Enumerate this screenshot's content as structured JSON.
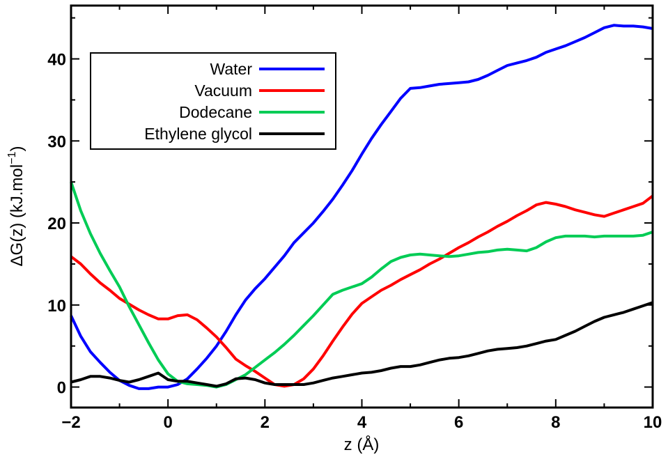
{
  "chart_data": {
    "type": "line",
    "xlabel": "z (Å)",
    "ylabel_main": "ΔG(z) (kJ.mol",
    "ylabel_sup": "−1",
    "ylabel_close": ")",
    "xlim": [
      -2,
      10
    ],
    "ylim": [
      -2.5,
      46.5
    ],
    "xticks": [
      -2,
      0,
      2,
      4,
      6,
      8,
      10
    ],
    "xtick_labels": [
      "−2",
      "0",
      "2",
      "4",
      "6",
      "8",
      "10"
    ],
    "yticks": [
      0,
      10,
      20,
      30,
      40
    ],
    "ytick_labels": [
      "0",
      "10",
      "20",
      "30",
      "40"
    ],
    "grid": false,
    "legend_position": "top-left",
    "series": [
      {
        "name": "Water",
        "color": "#0000ff",
        "x": [
          -2,
          -1.8,
          -1.6,
          -1.4,
          -1.2,
          -1,
          -0.8,
          -0.6,
          -0.4,
          -0.2,
          0,
          0.2,
          0.4,
          0.6,
          0.8,
          1,
          1.2,
          1.4,
          1.6,
          1.8,
          2,
          2.2,
          2.4,
          2.6,
          2.8,
          3,
          3.2,
          3.4,
          3.6,
          3.8,
          4,
          4.2,
          4.4,
          4.6,
          4.8,
          5,
          5.2,
          5.4,
          5.6,
          5.8,
          6,
          6.2,
          6.4,
          6.6,
          6.8,
          7,
          7.2,
          7.4,
          7.6,
          7.8,
          8,
          8.2,
          8.4,
          8.6,
          8.8,
          9,
          9.2,
          9.4,
          9.6,
          9.8,
          10
        ],
        "values": [
          8.7,
          6.2,
          4.3,
          3.0,
          1.8,
          0.8,
          0.2,
          -0.2,
          -0.2,
          0.0,
          0.0,
          0.3,
          1.0,
          2.2,
          3.5,
          5.0,
          6.8,
          8.8,
          10.6,
          12.0,
          13.2,
          14.6,
          16.0,
          17.6,
          18.8,
          20.0,
          21.4,
          22.9,
          24.6,
          26.4,
          28.4,
          30.3,
          32.0,
          33.6,
          35.2,
          36.4,
          36.5,
          36.7,
          36.9,
          37.0,
          37.1,
          37.2,
          37.5,
          38.0,
          38.6,
          39.2,
          39.5,
          39.8,
          40.2,
          40.8,
          41.2,
          41.6,
          42.1,
          42.6,
          43.2,
          43.8,
          44.1,
          44.0,
          44.0,
          43.9,
          43.7
        ]
      },
      {
        "name": "Vacuum",
        "color": "#ff0000",
        "x": [
          -2,
          -1.8,
          -1.6,
          -1.4,
          -1.2,
          -1,
          -0.8,
          -0.6,
          -0.4,
          -0.2,
          0,
          0.2,
          0.4,
          0.6,
          0.8,
          1,
          1.2,
          1.4,
          1.6,
          1.8,
          2,
          2.2,
          2.4,
          2.6,
          2.8,
          3,
          3.2,
          3.4,
          3.6,
          3.8,
          4,
          4.2,
          4.4,
          4.6,
          4.8,
          5,
          5.2,
          5.4,
          5.6,
          5.8,
          6,
          6.2,
          6.4,
          6.6,
          6.8,
          7,
          7.2,
          7.4,
          7.6,
          7.8,
          8,
          8.2,
          8.4,
          8.6,
          8.8,
          9,
          9.2,
          9.4,
          9.6,
          9.8,
          10
        ],
        "values": [
          15.9,
          15.0,
          13.8,
          12.7,
          11.8,
          10.8,
          10.1,
          9.4,
          8.8,
          8.3,
          8.3,
          8.7,
          8.8,
          8.2,
          7.2,
          6.1,
          4.8,
          3.4,
          2.6,
          1.9,
          1.1,
          0.3,
          0.1,
          0.3,
          1.0,
          2.2,
          3.8,
          5.6,
          7.3,
          8.9,
          10.2,
          11.0,
          11.8,
          12.4,
          13.1,
          13.7,
          14.3,
          15.0,
          15.6,
          16.3,
          17.0,
          17.6,
          18.3,
          18.9,
          19.6,
          20.2,
          20.9,
          21.5,
          22.2,
          22.5,
          22.3,
          22.0,
          21.6,
          21.3,
          21.0,
          20.8,
          21.2,
          21.6,
          22.0,
          22.4,
          23.3
        ]
      },
      {
        "name": "Dodecane",
        "color": "#00cc55",
        "x": [
          -2,
          -1.8,
          -1.6,
          -1.4,
          -1.2,
          -1,
          -0.8,
          -0.6,
          -0.4,
          -0.2,
          0,
          0.2,
          0.4,
          0.6,
          0.8,
          1,
          1.2,
          1.4,
          1.6,
          1.8,
          2,
          2.2,
          2.4,
          2.6,
          2.8,
          3,
          3.2,
          3.4,
          3.6,
          3.8,
          4,
          4.2,
          4.4,
          4.6,
          4.8,
          5,
          5.2,
          5.4,
          5.6,
          5.8,
          6,
          6.2,
          6.4,
          6.6,
          6.8,
          7,
          7.2,
          7.4,
          7.6,
          7.8,
          8,
          8.2,
          8.4,
          8.6,
          8.8,
          9,
          9.2,
          9.4,
          9.6,
          9.8,
          10
        ],
        "values": [
          25.0,
          21.5,
          18.7,
          16.3,
          14.2,
          12.2,
          9.8,
          7.6,
          5.4,
          3.3,
          1.6,
          0.7,
          0.4,
          0.3,
          0.2,
          0.0,
          0.3,
          0.9,
          1.5,
          2.4,
          3.3,
          4.2,
          5.2,
          6.3,
          7.5,
          8.7,
          10.0,
          11.3,
          11.8,
          12.2,
          12.6,
          13.4,
          14.4,
          15.3,
          15.8,
          16.1,
          16.2,
          16.1,
          16.0,
          15.9,
          16.0,
          16.2,
          16.4,
          16.5,
          16.7,
          16.8,
          16.7,
          16.6,
          17.0,
          17.7,
          18.2,
          18.4,
          18.4,
          18.4,
          18.3,
          18.4,
          18.4,
          18.4,
          18.4,
          18.5,
          18.9
        ]
      },
      {
        "name": "Ethylene glycol",
        "color": "#000000",
        "x": [
          -2,
          -1.8,
          -1.6,
          -1.4,
          -1.2,
          -1,
          -0.8,
          -0.6,
          -0.4,
          -0.2,
          0,
          0.2,
          0.4,
          0.6,
          0.8,
          1,
          1.2,
          1.4,
          1.6,
          1.8,
          2,
          2.2,
          2.4,
          2.6,
          2.8,
          3,
          3.2,
          3.4,
          3.6,
          3.8,
          4,
          4.2,
          4.4,
          4.6,
          4.8,
          5,
          5.2,
          5.4,
          5.6,
          5.8,
          6,
          6.2,
          6.4,
          6.6,
          6.8,
          7,
          7.2,
          7.4,
          7.6,
          7.8,
          8,
          8.2,
          8.4,
          8.6,
          8.8,
          9,
          9.2,
          9.4,
          9.6,
          9.8,
          10
        ],
        "values": [
          0.6,
          0.9,
          1.3,
          1.3,
          1.1,
          0.8,
          0.6,
          0.9,
          1.3,
          1.7,
          0.9,
          0.7,
          0.7,
          0.5,
          0.3,
          0.1,
          0.4,
          1.0,
          1.1,
          0.9,
          0.5,
          0.3,
          0.3,
          0.3,
          0.3,
          0.5,
          0.8,
          1.1,
          1.3,
          1.5,
          1.7,
          1.8,
          2.0,
          2.3,
          2.5,
          2.5,
          2.7,
          3.0,
          3.3,
          3.5,
          3.6,
          3.8,
          4.1,
          4.4,
          4.6,
          4.7,
          4.8,
          5.0,
          5.3,
          5.6,
          5.8,
          6.3,
          6.8,
          7.4,
          8.0,
          8.5,
          8.8,
          9.1,
          9.5,
          9.9,
          10.3
        ]
      }
    ]
  }
}
